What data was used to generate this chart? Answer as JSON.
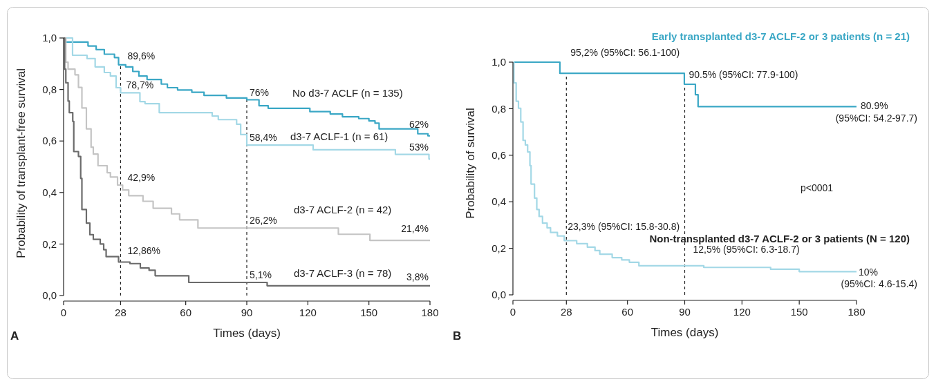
{
  "chart_data": [
    {
      "type": "step",
      "xlabel": "Times (days)",
      "ylabel": "Probability of transplant-free survival",
      "xlim": [
        0,
        180
      ],
      "xticks": [
        0,
        28,
        60,
        90,
        120,
        150,
        180
      ],
      "ylim": [
        0,
        1
      ],
      "yticks": [
        {
          "value": 0,
          "label": "0,0"
        },
        {
          "value": 0.2,
          "label": "0,2"
        },
        {
          "value": 0.4,
          "label": "0,4"
        },
        {
          "value": 0.6,
          "label": "0,6"
        },
        {
          "value": 0.8,
          "label": "0,8"
        },
        {
          "value": 1,
          "label": "1,0"
        }
      ],
      "series": [
        {
          "name": "No d3-7 ACLF (n = 135)",
          "color": "#3aa7c5",
          "x": [
            0,
            1,
            12,
            16,
            20,
            25,
            27,
            30.5,
            34,
            37,
            41,
            48,
            51,
            56,
            63,
            69,
            80,
            90,
            96,
            100.5,
            121,
            131,
            137,
            145,
            150,
            153,
            155,
            174,
            179,
            180
          ],
          "values": [
            1,
            0.984,
            0.969,
            0.955,
            0.937,
            0.924,
            0.896,
            0.888,
            0.87,
            0.852,
            0.839,
            0.821,
            0.807,
            0.798,
            0.789,
            0.777,
            0.767,
            0.76,
            0.737,
            0.727,
            0.714,
            0.705,
            0.694,
            0.687,
            0.678,
            0.669,
            0.647,
            0.628,
            0.62,
            0.62
          ]
        },
        {
          "name": "d3-7 ACLF-1 (n = 61)",
          "color": "#a3d8e6",
          "x": [
            0,
            4.4,
            11.5,
            15.5,
            20,
            23,
            25.8,
            28,
            37.5,
            40,
            47,
            73,
            76,
            85,
            87,
            90,
            122.6,
            163,
            179.5,
            180
          ],
          "values": [
            1,
            0.933,
            0.92,
            0.888,
            0.866,
            0.852,
            0.807,
            0.787,
            0.753,
            0.745,
            0.71,
            0.697,
            0.683,
            0.665,
            0.625,
            0.584,
            0.566,
            0.548,
            0.53,
            0.53
          ]
        },
        {
          "name": "d3-7 ACLF-2 (n = 42)",
          "color": "#c4c4c4",
          "x": [
            0,
            1.1,
            2.2,
            5.6,
            7.3,
            9,
            11.2,
            13.5,
            14.6,
            16.9,
            21.4,
            23,
            26.5,
            29,
            32,
            39,
            44,
            53,
            57,
            66,
            135,
            150.5,
            180
          ],
          "values": [
            1,
            0.906,
            0.879,
            0.857,
            0.808,
            0.728,
            0.647,
            0.576,
            0.549,
            0.504,
            0.477,
            0.46,
            0.429,
            0.41,
            0.388,
            0.366,
            0.339,
            0.317,
            0.294,
            0.262,
            0.238,
            0.214,
            0.214
          ]
        },
        {
          "name": "d3-7 ACLF-3 (n = 78)",
          "color": "#6b6b6b",
          "x": [
            0,
            0.5,
            1.1,
            2.2,
            2.8,
            4.5,
            5,
            7.3,
            8.4,
            9,
            11.2,
            12.9,
            14.6,
            18,
            19.7,
            20.9,
            27,
            32.6,
            37.7,
            42,
            45,
            61.5,
            100,
            180
          ],
          "values": [
            1,
            0.879,
            0.826,
            0.755,
            0.71,
            0.676,
            0.559,
            0.54,
            0.455,
            0.334,
            0.281,
            0.236,
            0.218,
            0.2,
            0.178,
            0.151,
            0.13,
            0.124,
            0.107,
            0.098,
            0.077,
            0.051,
            0.038,
            0.038
          ]
        }
      ],
      "ref_lines": [
        {
          "axis": "x",
          "value": 28,
          "line_style": "dashed",
          "color": "#222222"
        },
        {
          "axis": "x",
          "value": 90,
          "line_style": "dashed",
          "color": "#222222"
        }
      ],
      "annotations": [
        {
          "text": "89,6%",
          "x": 28,
          "y": 0.896
        },
        {
          "text": "78,7%",
          "x": 28,
          "y": 0.787
        },
        {
          "text": "42,9%",
          "x": 28,
          "y": 0.429
        },
        {
          "text": "12,86%",
          "x": 28,
          "y": 0.13
        },
        {
          "text": "76%",
          "x": 90,
          "y": 0.76
        },
        {
          "text": "58,4%",
          "x": 90,
          "y": 0.584
        },
        {
          "text": "26,2%",
          "x": 90,
          "y": 0.262
        },
        {
          "text": "5,1%",
          "x": 90,
          "y": 0.051
        },
        {
          "text": "62%",
          "x": 180,
          "y": 0.62
        },
        {
          "text": "53%",
          "x": 180,
          "y": 0.53
        },
        {
          "text": "21,4%",
          "x": 180,
          "y": 0.214
        },
        {
          "text": "3,8%",
          "x": 180,
          "y": 0.038
        },
        "A"
      ]
    },
    {
      "type": "step",
      "xlabel": "Times (days)",
      "ylabel": "Probability of survival",
      "xlim": [
        0,
        180
      ],
      "xticks": [
        0,
        28,
        60,
        90,
        120,
        150,
        180
      ],
      "ylim": [
        0,
        1
      ],
      "yticks": [
        {
          "value": 0,
          "label": "0,0"
        },
        {
          "value": 0.2,
          "label": "0,2"
        },
        {
          "value": 0.4,
          "label": "0,4"
        },
        {
          "value": 0.6,
          "label": "0,6"
        },
        {
          "value": 0.8,
          "label": "0,8"
        },
        {
          "value": 1,
          "label": "1,0"
        }
      ],
      "series": [
        {
          "name": "Early transplanted d3-7 ACLF-2 or 3 patients (n = 21)",
          "color": "#3aa7c5",
          "x": [
            0,
            24.6,
            89.8,
            95.6,
            97,
            180
          ],
          "values": [
            1,
            0.952,
            0.905,
            0.86,
            0.809,
            0.809
          ]
        },
        {
          "name": "Non-transplanted d3-7 ACLF-2 or 3 patients (N = 120)",
          "color": "#a3d8e6",
          "x": [
            0,
            0.5,
            1.7,
            2.9,
            4.1,
            5.3,
            6.5,
            7.7,
            8.9,
            9.5,
            11.3,
            12.5,
            13.7,
            15.5,
            17.9,
            19.7,
            23.3,
            26.9,
            33.4,
            39,
            43,
            45.5,
            52,
            57,
            61,
            66,
            100,
            135,
            150,
            180
          ],
          "values": [
            1,
            0.911,
            0.832,
            0.802,
            0.743,
            0.664,
            0.644,
            0.614,
            0.555,
            0.476,
            0.416,
            0.367,
            0.337,
            0.308,
            0.288,
            0.268,
            0.253,
            0.233,
            0.22,
            0.205,
            0.19,
            0.175,
            0.16,
            0.15,
            0.14,
            0.125,
            0.118,
            0.11,
            0.1,
            0.1
          ]
        }
      ],
      "ref_lines": [
        {
          "axis": "x",
          "value": 28,
          "line_style": "dashed",
          "color": "#222222"
        },
        {
          "axis": "x",
          "value": 90,
          "line_style": "dashed",
          "color": "#222222"
        }
      ],
      "annotations": [
        {
          "text": "95,2% (95%CI: 56.1-100)",
          "x": 28,
          "y": 0.952
        },
        {
          "text": "90.5% (95%CI: 77.9-100)",
          "x": 90,
          "y": 0.905
        },
        {
          "text": "80.9%",
          "x": 180,
          "y": 0.809
        },
        "(95%CI: 54.2-97.7)",
        "p<0001",
        {
          "text": "23,3% (95%CI: 15.8-30.8)",
          "x": 28,
          "y": 0.233
        },
        {
          "text": "12,5% (95%CI: 6.3-18.7)",
          "x": 90,
          "y": 0.125
        },
        {
          "text": "10%",
          "x": 180,
          "y": 0.1
        },
        "(95%CI: 4.6-15.4)",
        "B"
      ]
    }
  ]
}
